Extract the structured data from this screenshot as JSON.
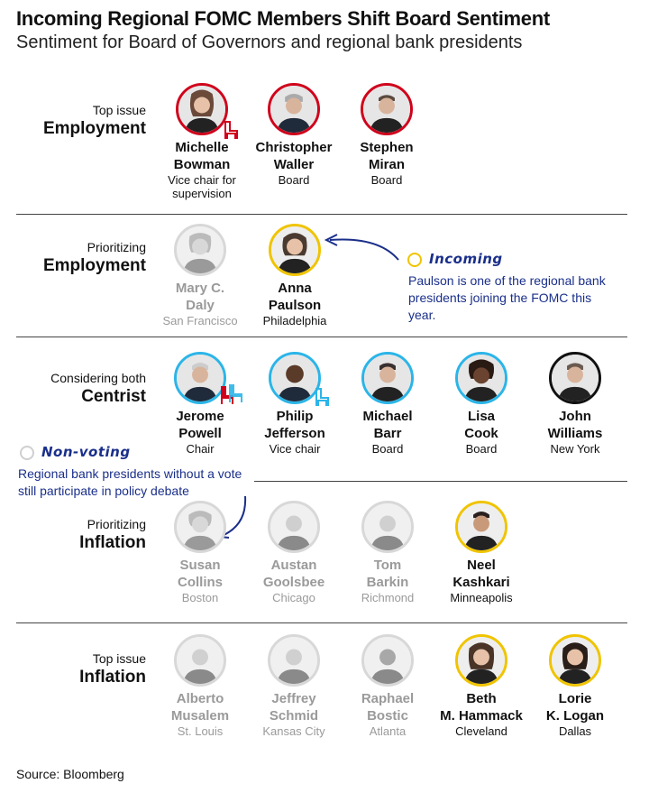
{
  "title": "Incoming Regional FOMC Members Shift Board Sentiment",
  "subtitle": "Sentiment for Board of Governors and regional bank presidents",
  "rows": [
    {
      "small": "Top issue",
      "big": "Employment"
    },
    {
      "small": "Prioritizing",
      "big": "Employment"
    },
    {
      "small": "Considering both",
      "big": "Centrist"
    },
    {
      "small": "Prioritizing",
      "big": "Inflation"
    },
    {
      "small": "Top issue",
      "big": "Inflation"
    }
  ],
  "people": {
    "bowman": {
      "name1": "Michelle",
      "name2": "Bowman",
      "role": "Vice chair for supervision"
    },
    "waller": {
      "name1": "Christopher",
      "name2": "Waller",
      "role": "Board"
    },
    "miran": {
      "name1": "Stephen",
      "name2": "Miran",
      "role": "Board"
    },
    "daly": {
      "name1": "Mary C.",
      "name2": "Daly",
      "role": "San Francisco"
    },
    "paulson": {
      "name1": "Anna",
      "name2": "Paulson",
      "role": "Philadelphia"
    },
    "powell": {
      "name1": "Jerome",
      "name2": "Powell",
      "role": "Chair"
    },
    "jefferson": {
      "name1": "Philip",
      "name2": "Jefferson",
      "role": "Vice chair"
    },
    "barr": {
      "name1": "Michael",
      "name2": "Barr",
      "role": "Board"
    },
    "cook": {
      "name1": "Lisa",
      "name2": "Cook",
      "role": "Board"
    },
    "williams": {
      "name1": "John",
      "name2": "Williams",
      "role": "New York"
    },
    "collins": {
      "name1": "Susan",
      "name2": "Collins",
      "role": "Boston"
    },
    "goolsbee": {
      "name1": "Austan",
      "name2": "Goolsbee",
      "role": "Chicago"
    },
    "barkin": {
      "name1": "Tom",
      "name2": "Barkin",
      "role": "Richmond"
    },
    "kashkari": {
      "name1": "Neel",
      "name2": "Kashkari",
      "role": "Minneapolis"
    },
    "musalem": {
      "name1": "Alberto",
      "name2": "Musalem",
      "role": "St. Louis"
    },
    "schmid": {
      "name1": "Jeffrey",
      "name2": "Schmid",
      "role": "Kansas City"
    },
    "bostic": {
      "name1": "Raphael",
      "name2": "Bostic",
      "role": "Atlanta"
    },
    "hammack": {
      "name1": "Beth",
      "name2": "M. Hammack",
      "role": "Cleveland"
    },
    "logan": {
      "name1": "Lorie",
      "name2": "K. Logan",
      "role": "Dallas"
    }
  },
  "annotations": {
    "incoming": {
      "head": "Incoming",
      "text": "Paulson is one of the regional bank presidents joining the FOMC this year."
    },
    "nonvoting": {
      "head": "Non-voting",
      "text": "Regional bank presidents without a vote still participate in policy debate"
    }
  },
  "source": "Source: Bloomberg",
  "colors": {
    "board_employment": "#d0021b",
    "incoming": "#f0c400",
    "centrist": "#2bb5e8",
    "regional_voter": "#111111",
    "non_voting": "#d8d8d8",
    "annotation": "#1a2f8a"
  }
}
